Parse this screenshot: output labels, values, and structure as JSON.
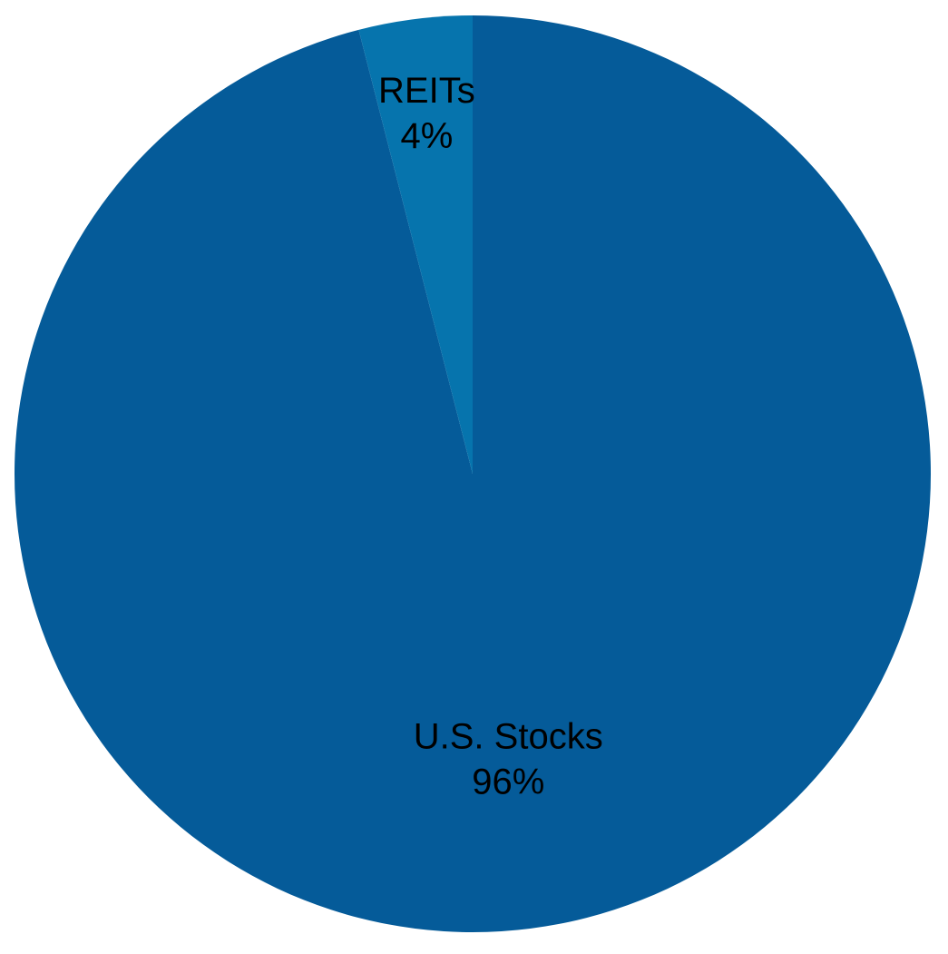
{
  "chart_data": {
    "type": "pie",
    "slices": [
      {
        "label": "U.S. Stocks",
        "value": 96,
        "value_label": "96%",
        "color": "#055b99"
      },
      {
        "label": "REITs",
        "value": 4,
        "value_label": "4%",
        "color": "#0674ad"
      }
    ],
    "start_angle_deg": 0,
    "direction": "clockwise",
    "legend": "none"
  }
}
